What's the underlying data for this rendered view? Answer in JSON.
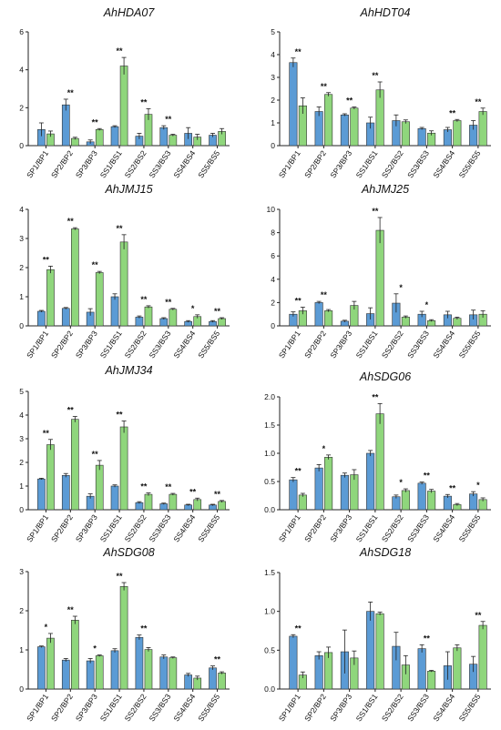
{
  "colors": {
    "sp_ss": "#5b9bd5",
    "bp_bs": "#8fd67c",
    "axis": "#222222",
    "bar_edge": "#333333"
  },
  "chart_data": [
    {
      "type": "bar",
      "title": "AhHDA07",
      "categories": [
        "SP1/BP1",
        "SP2/BP2",
        "SP3/BP3",
        "SS1/BS1",
        "SS2/BS2",
        "SS3/BS3",
        "SS4/BS4",
        "SS5/BS5"
      ],
      "ylim": [
        0,
        6
      ],
      "yticks": [
        0,
        2,
        4,
        6
      ],
      "series": [
        {
          "values": [
            0.85,
            2.15,
            0.2,
            1.0,
            0.5,
            0.95,
            0.65,
            0.55
          ],
          "errors": [
            0.35,
            0.3,
            0.1,
            0.05,
            0.15,
            0.1,
            0.3,
            0.1
          ]
        },
        {
          "values": [
            0.62,
            0.38,
            0.85,
            4.2,
            1.65,
            0.55,
            0.45,
            0.75
          ],
          "errors": [
            0.15,
            0.06,
            0.05,
            0.45,
            0.3,
            0.05,
            0.15,
            0.15
          ]
        }
      ],
      "significance": [
        "",
        "**",
        "**",
        "**",
        "**",
        "**",
        "",
        ""
      ]
    },
    {
      "type": "bar",
      "title": "AhHDT04",
      "categories": [
        "SP1/BP1",
        "SP2/BP2",
        "SP3/BP3",
        "SS1/BS1",
        "SS2/BS2",
        "SS3/BS3",
        "SS4/BS4",
        "SS5/BS5"
      ],
      "ylim": [
        0,
        5
      ],
      "yticks": [
        0,
        1,
        2,
        3,
        4,
        5
      ],
      "series": [
        {
          "values": [
            3.65,
            1.5,
            1.35,
            1.0,
            1.1,
            0.75,
            0.7,
            0.9
          ],
          "errors": [
            0.2,
            0.2,
            0.05,
            0.25,
            0.25,
            0.05,
            0.1,
            0.2
          ]
        },
        {
          "values": [
            1.75,
            2.25,
            1.65,
            2.45,
            1.05,
            0.55,
            1.1,
            1.5
          ],
          "errors": [
            0.35,
            0.08,
            0.05,
            0.35,
            0.08,
            0.1,
            0.05,
            0.15
          ]
        }
      ],
      "significance": [
        "**",
        "**",
        "**",
        "**",
        "",
        "",
        "**",
        "**"
      ]
    },
    {
      "type": "bar",
      "title": "AhJMJ15",
      "categories": [
        "SP1/BP1",
        "SP2/BP2",
        "SP3/BP3",
        "SS1/BS1",
        "SS2/BS2",
        "SS3/BS3",
        "SS4/BS4",
        "SS5/BS5"
      ],
      "ylim": [
        0,
        4
      ],
      "yticks": [
        0,
        1,
        2,
        3,
        4
      ],
      "series": [
        {
          "values": [
            0.5,
            0.6,
            0.47,
            1.0,
            0.3,
            0.25,
            0.15,
            0.15
          ],
          "errors": [
            0.03,
            0.03,
            0.12,
            0.1,
            0.04,
            0.03,
            0.03,
            0.03
          ]
        },
        {
          "values": [
            1.93,
            3.33,
            1.83,
            2.88,
            0.65,
            0.57,
            0.32,
            0.25
          ],
          "errors": [
            0.12,
            0.04,
            0.04,
            0.25,
            0.04,
            0.03,
            0.06,
            0.03
          ]
        }
      ],
      "significance": [
        "**",
        "**",
        "**",
        "**",
        "**",
        "**",
        "*",
        "**"
      ]
    },
    {
      "type": "bar",
      "title": "AhJMJ25",
      "categories": [
        "SP1/BP1",
        "SP2/BP2",
        "SP3/BP3",
        "SS1/BS1",
        "SS2/BS2",
        "SS3/BS3",
        "SS4/BS4",
        "SS5/BS5"
      ],
      "ylim": [
        0,
        10
      ],
      "yticks": [
        0,
        2,
        4,
        6,
        8,
        10
      ],
      "series": [
        {
          "values": [
            1.0,
            2.0,
            0.4,
            1.05,
            1.95,
            1.0,
            0.95,
            0.95
          ],
          "errors": [
            0.2,
            0.1,
            0.08,
            0.5,
            0.8,
            0.25,
            0.3,
            0.4
          ]
        },
        {
          "values": [
            1.3,
            1.3,
            1.75,
            8.2,
            0.75,
            0.45,
            0.65,
            1.0
          ],
          "errors": [
            0.3,
            0.1,
            0.35,
            1.1,
            0.1,
            0.08,
            0.1,
            0.3
          ]
        }
      ],
      "significance": [
        "**",
        "**",
        "",
        "**",
        "*",
        "*",
        "",
        ""
      ]
    },
    {
      "type": "bar",
      "title": "AhJMJ34",
      "categories": [
        "SP1/BP1",
        "SP2/BP2",
        "SP3/BP3",
        "SS1/BS1",
        "SS2/BS2",
        "SS3/BS3",
        "SS4/BS4",
        "SS5/BS5"
      ],
      "ylim": [
        0,
        5
      ],
      "yticks": [
        0,
        1,
        2,
        3,
        4,
        5
      ],
      "series": [
        {
          "values": [
            1.3,
            1.45,
            0.57,
            1.0,
            0.3,
            0.25,
            0.2,
            0.2
          ],
          "errors": [
            0.03,
            0.08,
            0.1,
            0.05,
            0.04,
            0.03,
            0.03,
            0.03
          ]
        },
        {
          "values": [
            2.75,
            3.82,
            1.88,
            3.5,
            0.65,
            0.65,
            0.43,
            0.35
          ],
          "errors": [
            0.22,
            0.12,
            0.2,
            0.25,
            0.06,
            0.04,
            0.06,
            0.04
          ]
        }
      ],
      "significance": [
        "**",
        "**",
        "**",
        "**",
        "**",
        "**",
        "**",
        "**"
      ]
    },
    {
      "type": "bar",
      "title": "AhSDG06",
      "categories": [
        "SP1/BP1",
        "SP2/BP2",
        "SP3/BP3",
        "SS1/BS1",
        "SS2/BS2",
        "SS3/BS3",
        "SS4/BS4",
        "SS5/BS5"
      ],
      "ylim": [
        0,
        2.0
      ],
      "yticks": [
        "0.0",
        "0.5",
        "1.0",
        "1.5",
        "2.0"
      ],
      "series": [
        {
          "values": [
            0.53,
            0.74,
            0.61,
            1.0,
            0.23,
            0.47,
            0.24,
            0.28
          ],
          "errors": [
            0.04,
            0.06,
            0.04,
            0.05,
            0.03,
            0.02,
            0.03,
            0.04
          ]
        },
        {
          "values": [
            0.26,
            0.93,
            0.62,
            1.7,
            0.34,
            0.33,
            0.09,
            0.18
          ],
          "errors": [
            0.03,
            0.04,
            0.09,
            0.18,
            0.03,
            0.03,
            0.02,
            0.03
          ]
        }
      ],
      "significance": [
        "**",
        "*",
        "",
        "**",
        "*",
        "**",
        "**",
        "*"
      ]
    },
    {
      "type": "bar",
      "title": "AhSDG08",
      "categories": [
        "SP1/BP1",
        "SP2/BP2",
        "SP3/BP3",
        "SS1/BS1",
        "SS2/BS2",
        "SS3/BS3",
        "SS4/BS4",
        "SS5/BS5"
      ],
      "ylim": [
        0,
        3
      ],
      "yticks": [
        0,
        1,
        2,
        3
      ],
      "series": [
        {
          "values": [
            1.08,
            0.74,
            0.72,
            0.98,
            1.32,
            0.82,
            0.36,
            0.54
          ],
          "errors": [
            0.02,
            0.04,
            0.06,
            0.05,
            0.06,
            0.05,
            0.04,
            0.05
          ]
        },
        {
          "values": [
            1.3,
            1.76,
            0.85,
            2.62,
            1.01,
            0.8,
            0.28,
            0.41
          ],
          "errors": [
            0.12,
            0.1,
            0.02,
            0.1,
            0.05,
            0.02,
            0.05,
            0.03
          ]
        }
      ],
      "significance": [
        "*",
        "**",
        "*",
        "**",
        "**",
        "",
        "",
        "**"
      ]
    },
    {
      "type": "bar",
      "title": "AhSDG18",
      "categories": [
        "SP1/BP1",
        "SP2/BP2",
        "SP3/BP3",
        "SS1/BS1",
        "SS2/BS2",
        "SS3/BS3",
        "SS4/BS4",
        "SS5/BS5"
      ],
      "ylim": [
        0,
        1.5
      ],
      "yticks": [
        "0.0",
        "0.5",
        "1.0",
        "1.5"
      ],
      "series": [
        {
          "values": [
            0.68,
            0.43,
            0.48,
            1.0,
            0.55,
            0.52,
            0.3,
            0.32
          ],
          "errors": [
            0.02,
            0.05,
            0.28,
            0.12,
            0.18,
            0.05,
            0.18,
            0.1
          ]
        },
        {
          "values": [
            0.18,
            0.47,
            0.4,
            0.97,
            0.31,
            0.23,
            0.53,
            0.82
          ],
          "errors": [
            0.04,
            0.07,
            0.09,
            0.02,
            0.12,
            0.01,
            0.04,
            0.05
          ]
        }
      ],
      "significance": [
        "**",
        "",
        "",
        "",
        "",
        "**",
        "",
        "**"
      ]
    }
  ]
}
